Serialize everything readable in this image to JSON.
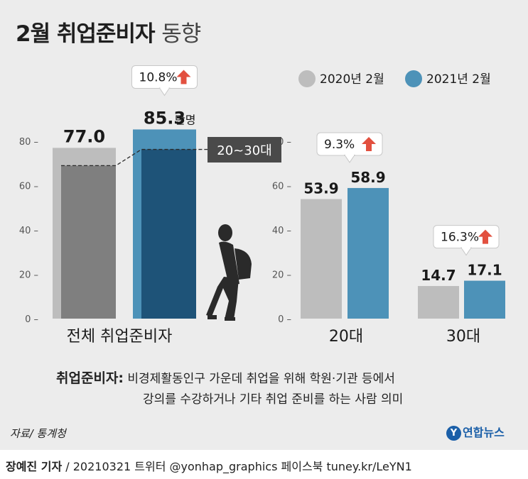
{
  "title": {
    "bold": "2월 취업준비자",
    "light": "동향"
  },
  "legend": [
    {
      "label": "2020년 2월",
      "color": "#bdbdbd"
    },
    {
      "label": "2021년 2월",
      "color": "#4d92b8"
    }
  ],
  "chart_data": {
    "type": "bar",
    "title": "2월 취업준비자 동향",
    "unit": "만명",
    "ylim": [
      0,
      80
    ],
    "yticks": [
      0,
      20,
      40,
      60,
      80
    ],
    "ytick_labels": [
      "0",
      "20",
      "40",
      "60",
      "80"
    ],
    "series": [
      {
        "name": "2020년 2월",
        "color": "#bdbdbd"
      },
      {
        "name": "2021년 2월",
        "color": "#4d92b8"
      }
    ],
    "groups": [
      {
        "label": "전체 취업준비자",
        "values": [
          77.0,
          85.3
        ],
        "value_labels": [
          "77.0",
          "85.3"
        ],
        "inner_values": [
          69.0,
          76.3
        ],
        "inner_label": "20~30대",
        "change_label": "10.8%"
      },
      {
        "label": "20대",
        "values": [
          53.9,
          58.9
        ],
        "value_labels": [
          "53.9",
          "58.9"
        ],
        "change_label": "9.3%"
      },
      {
        "label": "30대",
        "values": [
          14.7,
          17.1
        ],
        "value_labels": [
          "14.7",
          "17.1"
        ],
        "change_label": "16.3%"
      }
    ],
    "inner_colors": [
      "#7f7f7f",
      "#1e5378"
    ],
    "up_arrow_color": "#e2503f"
  },
  "note": {
    "term": "취업준비자:",
    "line1": "비경제활동인구 가운데 취업을 위해 학원·기관 등에서",
    "line2": "강의를 수강하거나 기타 취업 준비를 하는 사람 의미"
  },
  "source": "자료/ 통계청",
  "logo": {
    "mark": "Y",
    "text": "연합뉴스"
  },
  "footer": {
    "reporter": "장예진 기자",
    "rest": "/ 20210321 트위터 @yonhap_graphics  페이스북 tuney.kr/LeYN1"
  }
}
